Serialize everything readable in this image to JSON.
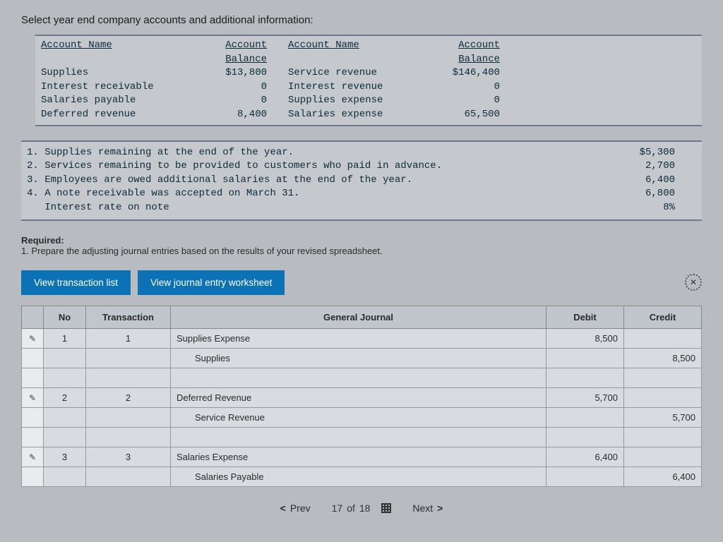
{
  "heading": "Select year end company accounts and additional information:",
  "accounts": {
    "headers": {
      "name": "Account Name",
      "balance": "Account Balance"
    },
    "left": [
      {
        "name": "Supplies",
        "balance": "$13,800"
      },
      {
        "name": "Interest receivable",
        "balance": "0"
      },
      {
        "name": "Salaries payable",
        "balance": "0"
      },
      {
        "name": "Deferred revenue",
        "balance": "8,400"
      }
    ],
    "right": [
      {
        "name": "Service revenue",
        "balance": "$146,400"
      },
      {
        "name": "Interest revenue",
        "balance": "0"
      },
      {
        "name": "Supplies expense",
        "balance": "0"
      },
      {
        "name": "Salaries expense",
        "balance": "65,500"
      }
    ]
  },
  "adjustments": [
    {
      "n": "1.",
      "text": "Supplies remaining at the end of the year.",
      "val": "$5,300"
    },
    {
      "n": "2.",
      "text": "Services remaining to be provided to customers who paid in advance.",
      "val": "2,700"
    },
    {
      "n": "3.",
      "text": "Employees are owed additional salaries at the end of the year.",
      "val": "6,400"
    },
    {
      "n": "4.",
      "text": "A note receivable was accepted on March 31.",
      "val": "6,800"
    },
    {
      "n": "",
      "text": "Interest rate on note",
      "val": "8%"
    }
  ],
  "required_label": "Required:",
  "required_text": "1. Prepare the adjusting journal entries based on the results of your revised spreadsheet.",
  "tabs": {
    "list": "View transaction list",
    "worksheet": "View journal entry worksheet"
  },
  "close_glyph": "✕",
  "journal": {
    "headers": {
      "no": "No",
      "trans": "Transaction",
      "gj": "General Journal",
      "debit": "Debit",
      "credit": "Credit"
    },
    "rows": [
      {
        "edit": true,
        "no": "1",
        "trans": "1",
        "gj": "Supplies Expense",
        "indent": false,
        "debit": "8,500",
        "credit": ""
      },
      {
        "edit": false,
        "no": "",
        "trans": "",
        "gj": "Supplies",
        "indent": true,
        "debit": "",
        "credit": "8,500"
      },
      {
        "edit": false,
        "no": "",
        "trans": "",
        "gj": "",
        "indent": false,
        "debit": "",
        "credit": ""
      },
      {
        "edit": true,
        "no": "2",
        "trans": "2",
        "gj": "Deferred Revenue",
        "indent": false,
        "debit": "5,700",
        "credit": ""
      },
      {
        "edit": false,
        "no": "",
        "trans": "",
        "gj": "Service Revenue",
        "indent": true,
        "debit": "",
        "credit": "5,700"
      },
      {
        "edit": false,
        "no": "",
        "trans": "",
        "gj": "",
        "indent": false,
        "debit": "",
        "credit": ""
      },
      {
        "edit": true,
        "no": "3",
        "trans": "3",
        "gj": "Salaries Expense",
        "indent": false,
        "debit": "6,400",
        "credit": ""
      },
      {
        "edit": false,
        "no": "",
        "trans": "",
        "gj": "Salaries Payable",
        "indent": true,
        "debit": "",
        "credit": "6,400"
      }
    ]
  },
  "pager": {
    "prev": "Prev",
    "page": "17",
    "of": "of",
    "total": "18",
    "next": "Next"
  },
  "colors": {
    "tab_bg": "#0b72b5",
    "page_bg": "#b8bcc0"
  }
}
